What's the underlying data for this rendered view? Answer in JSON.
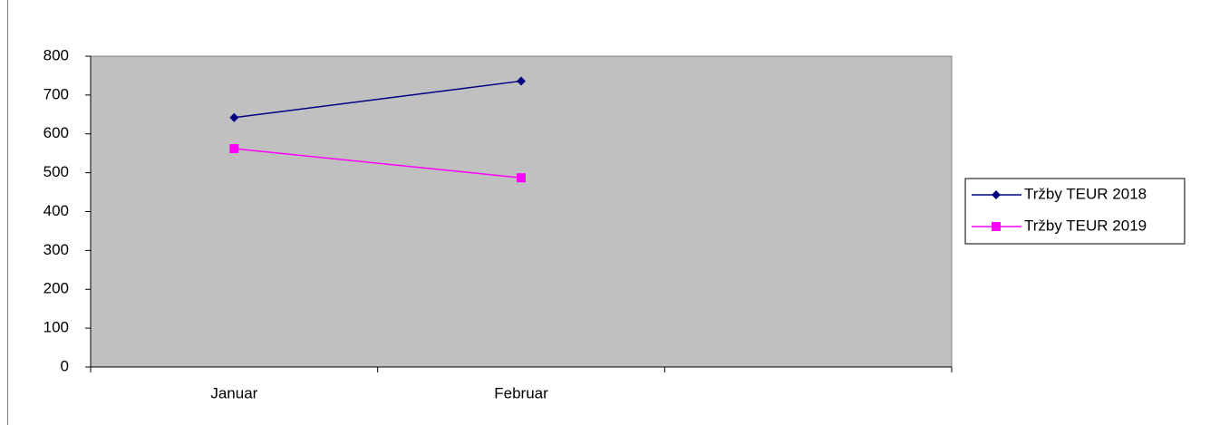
{
  "chart_data": {
    "type": "line",
    "categories": [
      "Januar",
      "Februar",
      null
    ],
    "series": [
      {
        "name": "Tržby TEUR 2018",
        "color": "#000080",
        "marker": "diamond",
        "values": [
          642,
          736,
          null
        ]
      },
      {
        "name": "Tržby TEUR 2019",
        "color": "#ff00ff",
        "marker": "square",
        "values": [
          562,
          487,
          null
        ]
      }
    ],
    "ylim": [
      0,
      800
    ],
    "yticks": [
      0,
      100,
      200,
      300,
      400,
      500,
      600,
      700,
      800
    ],
    "plot_background": "#c0c0c0",
    "legend": "right"
  }
}
